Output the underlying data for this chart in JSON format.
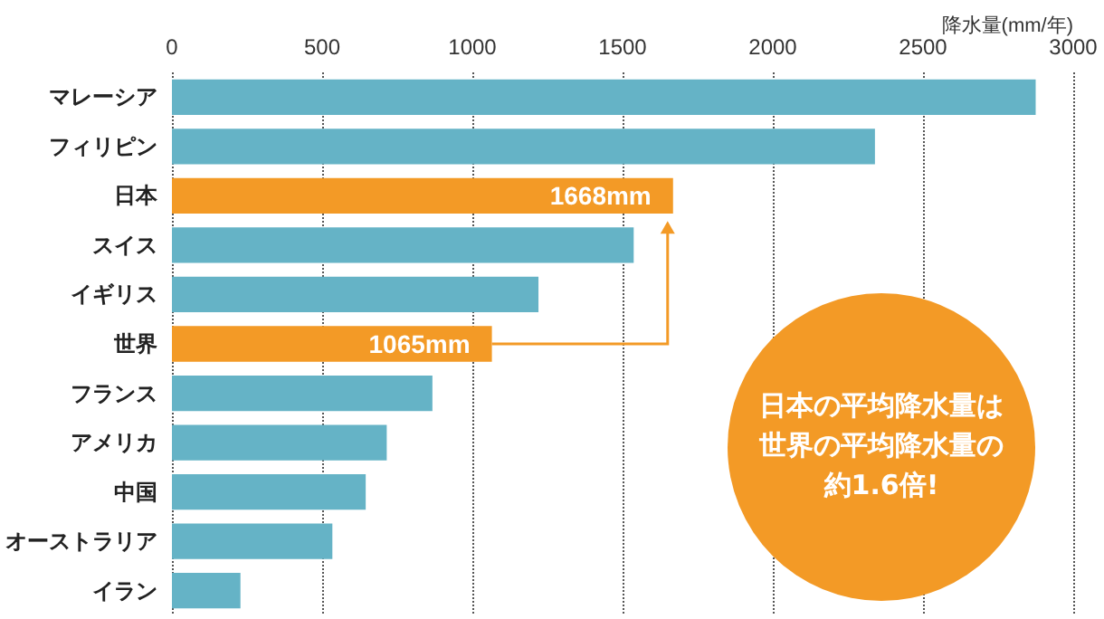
{
  "chart_data": {
    "type": "bar",
    "orientation": "horizontal",
    "xlabel": "降水量(mm/年)",
    "categories": [
      "マレーシア",
      "フィリピン",
      "日本",
      "スイス",
      "イギリス",
      "世界",
      "フランス",
      "アメリカ",
      "中国",
      "オーストラリア",
      "イラン"
    ],
    "values": [
      2875,
      2340,
      1668,
      1537,
      1220,
      1065,
      867,
      715,
      645,
      534,
      228
    ],
    "colors": [
      "#65b3c6",
      "#65b3c6",
      "#f39a26",
      "#65b3c6",
      "#65b3c6",
      "#f39a26",
      "#65b3c6",
      "#65b3c6",
      "#65b3c6",
      "#65b3c6",
      "#65b3c6"
    ],
    "value_labels": [
      null,
      null,
      "1668mm",
      null,
      null,
      "1065mm",
      null,
      null,
      null,
      null,
      null
    ],
    "xlim": [
      0,
      3000
    ],
    "xticks": [
      0,
      500,
      1000,
      1500,
      2000,
      2500,
      3000
    ],
    "grid": "x",
    "annotations": [
      "日本の平均降水量は世界の平均降水量の約1.6倍!"
    ]
  }
}
